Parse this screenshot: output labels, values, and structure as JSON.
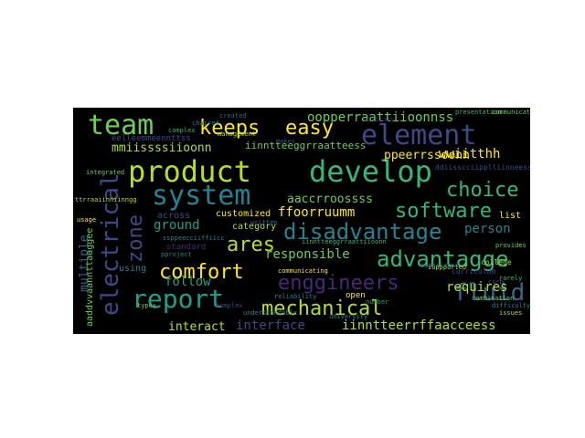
{
  "palette": {
    "background": "#000000",
    "figure_background": "#ffffff",
    "colors": [
      "#fde725",
      "#b5de2b",
      "#6ece58",
      "#35b779",
      "#1f9e89",
      "#26828e",
      "#31688e",
      "#3e4989",
      "#482878",
      "#440154"
    ]
  },
  "words": {
    "team": "team",
    "keeps": "keeps",
    "easy": "easy",
    "element": "element",
    "product": "product",
    "develop": "develop",
    "system": "system",
    "choice": "choice",
    "software": "software",
    "electrical": "electrical",
    "zone": "zone",
    "disadvantage": "disadvantage",
    "ares": "ares",
    "advantagge": "advantagge",
    "comfort": "comfort",
    "enggineers": "enggineers",
    "report": "report",
    "fluid": "fluid",
    "mechanical": "mechanical",
    "operation": "oopperraattiioonnss",
    "with": "wwiitthh",
    "person_double": "ppeerrssoonn",
    "mission": "mmiissssiioonn",
    "interest": "iinntteeggrraatteess",
    "element_double": "eelleemmeennttss",
    "across_double": "aaccrroossss",
    "forum": "ffoorruumm",
    "customized": "customized",
    "ground": "ground",
    "responsible": "responsible",
    "person": "person",
    "requires": "requires",
    "follow": "follow",
    "category": "category",
    "multiple": "multiple",
    "advantage_double": "aaddvvaannttaaggee",
    "interact": "interact",
    "interface": "interface",
    "interfaccess": "iinntteerrffaacceess",
    "using": "using",
    "open": "open",
    "list": "list",
    "across": "across",
    "standard": "standard",
    "college": "college",
    "curriculum": "curriculum",
    "written": "written",
    "supported": "suppported",
    "communicating": "communicating",
    "complex": "complex",
    "created": "created",
    "chaired": "chaired",
    "integrated": "integrated",
    "makes": "makes",
    "military": "military",
    "types": "types",
    "university": "university",
    "reliability": "reliability",
    "combination": "combination",
    "issues": "issues",
    "rarely": "rarely",
    "provides": "provides",
    "difficulty": "difficulty",
    "integration": "iinntteeggrraattiioonn",
    "discipline": "ddiisscciipplliinneess",
    "project": "pproject",
    "specific": "ssppeecciiffiicc",
    "management": "management",
    "experience": "experience",
    "presentation": "presentation",
    "communication": "communication",
    "training": "ttrraaiinniinngg",
    "usage": "usage",
    "number": "number",
    "understandable": "understandable",
    "corp": "corp"
  }
}
